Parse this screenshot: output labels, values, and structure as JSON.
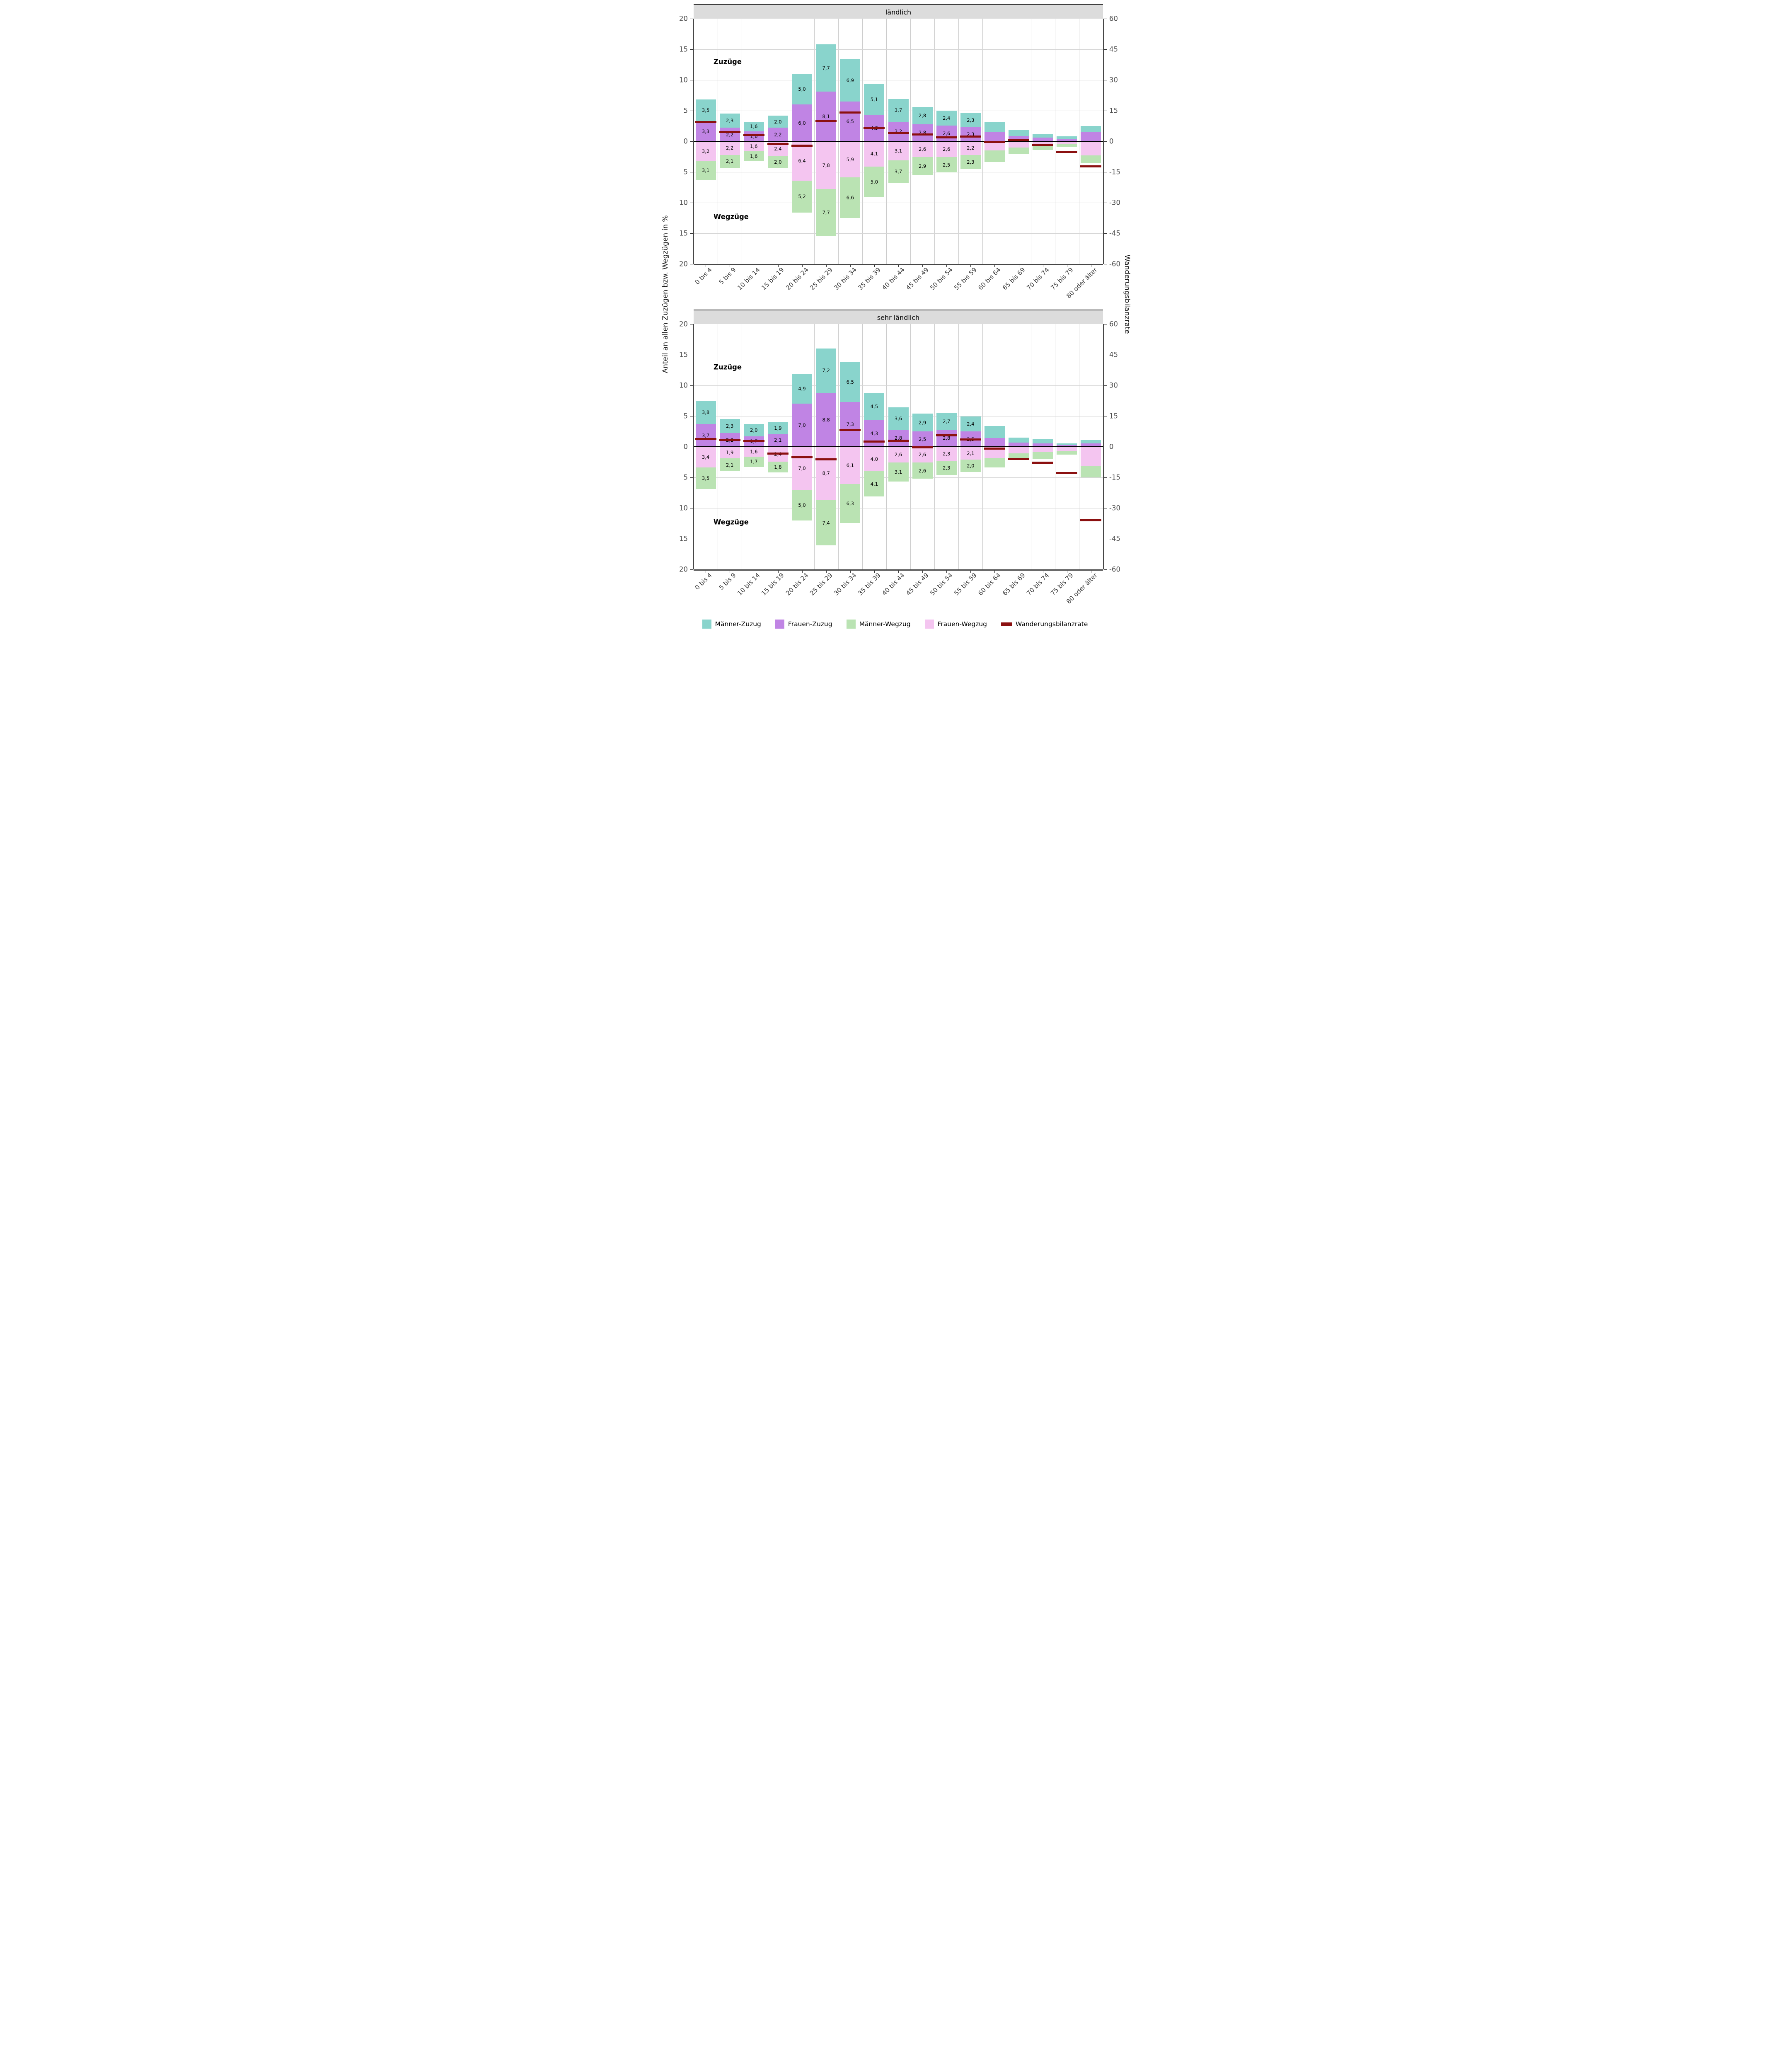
{
  "chart_data": {
    "type": "bar",
    "orientation": "diverging-stacked",
    "ylabel": "Anteil an allen Zuzügen bzw. Wegzügen in %",
    "y2label": "Wanderungsbilanzrate",
    "ylim": [
      -20,
      20
    ],
    "y2lim": [
      -60,
      60
    ],
    "grid": "on",
    "legend_position": "bottom",
    "left_ticks": [
      {
        "v": 20,
        "t": "20"
      },
      {
        "v": 15,
        "t": "15"
      },
      {
        "v": 10,
        "t": "10"
      },
      {
        "v": 5,
        "t": "5"
      },
      {
        "v": 0,
        "t": "0"
      },
      {
        "v": -5,
        "t": "5"
      },
      {
        "v": -10,
        "t": "10"
      },
      {
        "v": -15,
        "t": "15"
      },
      {
        "v": -20,
        "t": "20"
      }
    ],
    "right_ticks": [
      {
        "v": 60,
        "t": "60"
      },
      {
        "v": 45,
        "t": "45"
      },
      {
        "v": 30,
        "t": "30"
      },
      {
        "v": 15,
        "t": "15"
      },
      {
        "v": 0,
        "t": "0"
      },
      {
        "v": -15,
        "t": "-15"
      },
      {
        "v": -30,
        "t": "-30"
      },
      {
        "v": -45,
        "t": "-45"
      },
      {
        "v": -60,
        "t": "-60"
      }
    ],
    "categories": [
      "0 bis 4",
      "5 bis 9",
      "10 bis 14",
      "15 bis 19",
      "20 bis 24",
      "25 bis 29",
      "30 bis 34",
      "35 bis 39",
      "40 bis 44",
      "45 bis 49",
      "50 bis 54",
      "55 bis 59",
      "60 bis 64",
      "65 bis 69",
      "70 bis 74",
      "75 bis 79",
      "80 oder älter"
    ],
    "positive_stack": [
      "frauen_zuzug",
      "maenner_zuzug"
    ],
    "negative_stack": [
      "frauen_wegzug",
      "maenner_wegzug"
    ],
    "colors": {
      "maenner_zuzug": "#89D4CC",
      "frauen_zuzug": "#C084E4",
      "maenner_wegzug": "#BAE3B3",
      "frauen_wegzug": "#F4C5F0",
      "wanderungsbilanzrate": "#8B1010"
    },
    "annotations": {
      "zuzuege": "Zuzüge",
      "wegzuege": "Wegzüge"
    },
    "legend": [
      {
        "series": "maenner_zuzug",
        "label": "Männer-Zuzug",
        "type": "box"
      },
      {
        "series": "frauen_zuzug",
        "label": "Frauen-Zuzug",
        "type": "box"
      },
      {
        "series": "maenner_wegzug",
        "label": "Männer-Wegzug",
        "type": "box"
      },
      {
        "series": "frauen_wegzug",
        "label": "Frauen-Wegzug",
        "type": "box"
      },
      {
        "series": "wanderungsbilanzrate",
        "label": "Wanderungsbilanzrate",
        "type": "line"
      }
    ],
    "panels": [
      {
        "title": "ländlich",
        "series": {
          "maenner_zuzug": {
            "name": "Männer-Zuzug",
            "values": [
              3.5,
              2.3,
              1.6,
              2.0,
              5.0,
              7.7,
              6.9,
              5.1,
              3.7,
              2.8,
              2.4,
              2.3,
              1.7,
              1.0,
              0.6,
              0.4,
              1.0
            ],
            "labels": [
              "3,5",
              "2,3",
              "1,6",
              "2,0",
              "5,0",
              "7,7",
              "6,9",
              "5,1",
              "3,7",
              "2,8",
              "2,4",
              "2,3",
              "",
              "",
              "",
              "",
              ""
            ]
          },
          "frauen_zuzug": {
            "name": "Frauen-Zuzug",
            "values": [
              3.3,
              2.2,
              1.6,
              2.2,
              6.0,
              8.1,
              6.5,
              4.3,
              3.2,
              2.8,
              2.6,
              2.3,
              1.5,
              0.9,
              0.6,
              0.4,
              1.5
            ],
            "labels": [
              "3,3",
              "2,2",
              "1,6",
              "2,2",
              "6,0",
              "8,1",
              "6,5",
              "4,3",
              "3,2",
              "2,8",
              "2,6",
              "2,3",
              "",
              "",
              "",
              "",
              ""
            ]
          },
          "frauen_wegzug": {
            "name": "Frauen-Wegzug",
            "values": [
              3.2,
              2.2,
              1.6,
              2.4,
              6.4,
              7.8,
              5.9,
              4.1,
              3.1,
              2.6,
              2.6,
              2.2,
              1.5,
              1.0,
              0.5,
              0.5,
              2.3
            ],
            "labels": [
              "3,2",
              "2,2",
              "1,6",
              "2,4",
              "6,4",
              "7,8",
              "5,9",
              "4,1",
              "3,1",
              "2,6",
              "2,6",
              "2,2",
              "",
              "",
              "",
              "",
              ""
            ]
          },
          "maenner_wegzug": {
            "name": "Männer-Wegzug",
            "values": [
              3.1,
              2.1,
              1.6,
              2.0,
              5.2,
              7.7,
              6.6,
              5.0,
              3.7,
              2.9,
              2.5,
              2.3,
              1.9,
              1.0,
              0.9,
              0.4,
              1.3
            ],
            "labels": [
              "3,1",
              "2,1",
              "1,6",
              "2,0",
              "5,2",
              "7,7",
              "6,6",
              "5,0",
              "3,7",
              "2,9",
              "2,5",
              "2,3",
              "",
              "",
              "",
              "",
              ""
            ]
          }
        },
        "wanderungsbilanzrate": [
          9.4,
          4.5,
          3.1,
          -1.4,
          -2.2,
          10.1,
          14.1,
          6.5,
          4.1,
          3.3,
          1.9,
          2.4,
          -0.3,
          0.8,
          -1.8,
          -5.2,
          -12.2
        ]
      },
      {
        "title": "sehr ländlich",
        "series": {
          "maenner_zuzug": {
            "name": "Männer-Zuzug",
            "values": [
              3.8,
              2.3,
              2.0,
              1.9,
              4.9,
              7.2,
              6.5,
              4.5,
              3.6,
              2.9,
              2.7,
              2.4,
              1.9,
              0.85,
              0.75,
              0.3,
              0.5
            ],
            "labels": [
              "3,8",
              "2,3",
              "2,0",
              "1,9",
              "4,9",
              "7,2",
              "6,5",
              "4,5",
              "3,6",
              "2,9",
              "2,7",
              "2,4",
              "",
              "",
              "",
              "",
              ""
            ]
          },
          "frauen_zuzug": {
            "name": "Frauen-Zuzug",
            "values": [
              3.7,
              2.2,
              1.7,
              2.1,
              7.0,
              8.8,
              7.3,
              4.3,
              2.8,
              2.5,
              2.8,
              2.5,
              1.45,
              0.65,
              0.55,
              0.25,
              0.55
            ],
            "labels": [
              "3,7",
              "2,2",
              "1,7",
              "2,1",
              "7,0",
              "8,8",
              "7,3",
              "4,3",
              "2,8",
              "2,5",
              "2,8",
              "2,5",
              "",
              "",
              "",
              "",
              ""
            ]
          },
          "frauen_wegzug": {
            "name": "Frauen-Wegzug",
            "values": [
              3.4,
              1.9,
              1.6,
              2.4,
              7.0,
              8.7,
              6.1,
              4.0,
              2.6,
              2.6,
              2.3,
              2.1,
              1.8,
              1.05,
              0.85,
              0.75,
              3.15
            ],
            "labels": [
              "3,4",
              "1,9",
              "1,6",
              "2,4",
              "7,0",
              "8,7",
              "6,1",
              "4,0",
              "2,6",
              "2,6",
              "2,3",
              "2,1",
              "",
              "",
              "",
              "",
              ""
            ]
          },
          "maenner_wegzug": {
            "name": "Männer-Wegzug",
            "values": [
              3.5,
              2.1,
              1.7,
              1.8,
              5.0,
              7.4,
              6.3,
              4.1,
              3.1,
              2.6,
              2.3,
              2.0,
              1.55,
              1.0,
              1.1,
              0.55,
              1.85
            ],
            "labels": [
              "3,5",
              "2,1",
              "1,7",
              "1,8",
              "5,0",
              "7,4",
              "6,3",
              "4,1",
              "3,1",
              "2,6",
              "2,3",
              "2,0",
              "",
              "",
              "",
              "",
              ""
            ]
          }
        },
        "wanderungsbilanzrate": [
          3.7,
          3.4,
          2.8,
          -3.3,
          -5.2,
          -6.2,
          8.2,
          2.6,
          3.0,
          -0.4,
          5.6,
          3.6,
          -1.0,
          -5.9,
          -7.8,
          -12.9,
          -35.9
        ]
      }
    ]
  }
}
